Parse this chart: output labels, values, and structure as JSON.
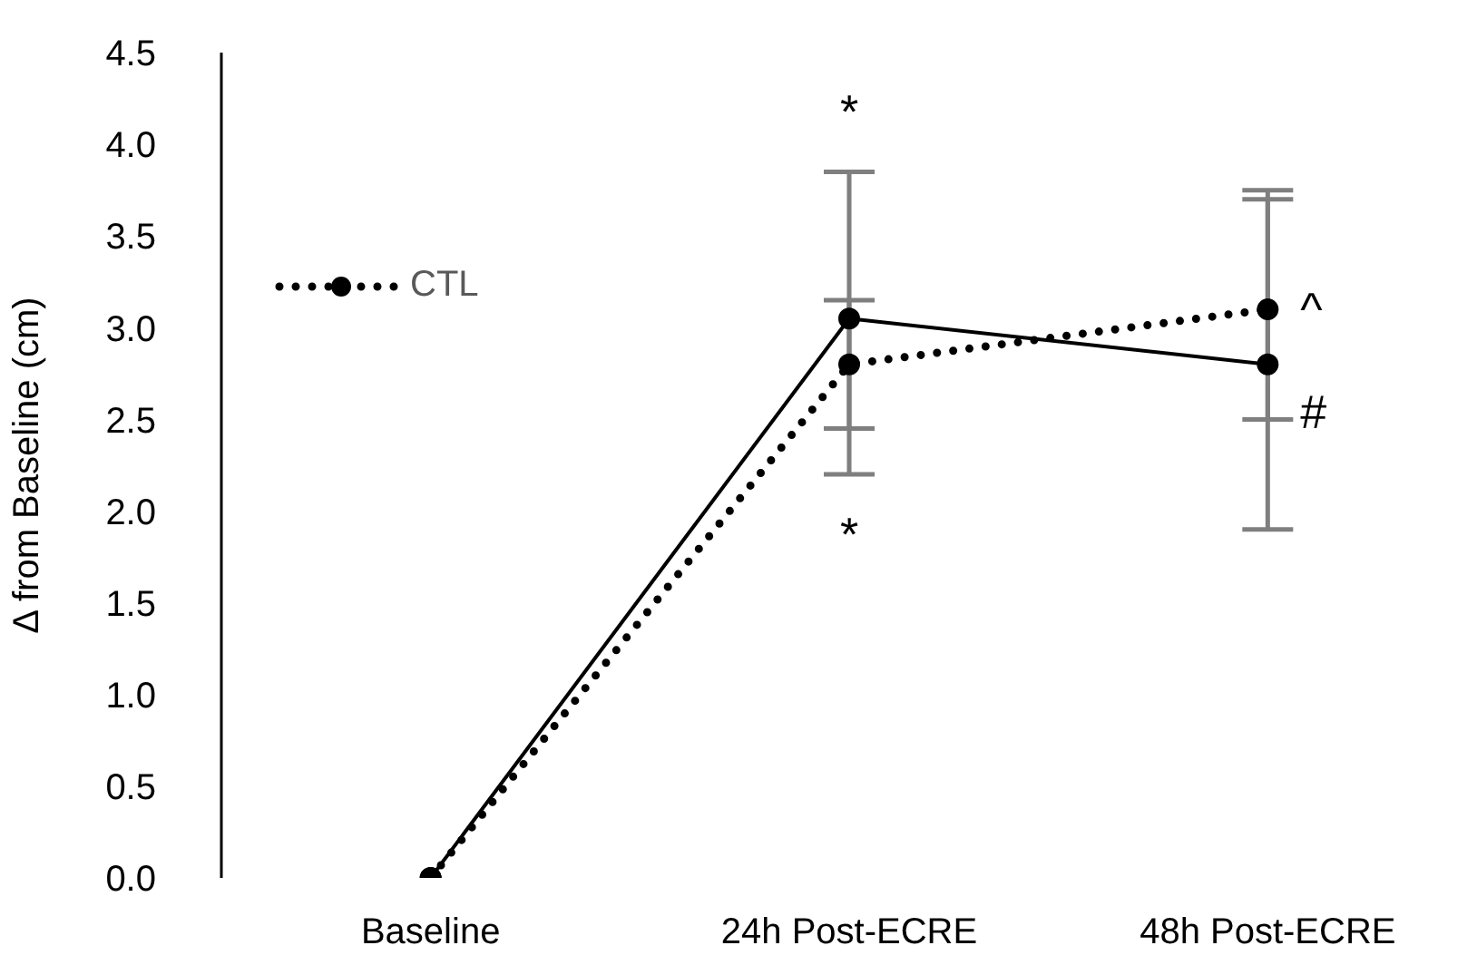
{
  "chart_data": {
    "type": "line",
    "ylabel": "Δ from Baseline (cm)",
    "categories": [
      "Baseline",
      "24h Post-ECRE",
      "48h Post-ECRE"
    ],
    "series": [
      {
        "color": "#000000",
        "values": [
          0,
          3.05,
          2.8
        ],
        "errors": [
          null,
          [
            2.2,
            3.85
          ],
          [
            1.9,
            3.7
          ]
        ],
        "line_style": "solid"
      },
      {
        "name": "CTL",
        "color": "#000000",
        "values": [
          0,
          2.8,
          3.1
        ],
        "errors": [
          null,
          [
            2.45,
            3.15
          ],
          [
            2.5,
            3.75
          ]
        ],
        "line_style": "dotted"
      }
    ],
    "ylim": [
      0,
      4.5
    ],
    "yticks": [
      {
        "value": 0,
        "label": "0.0"
      },
      0.5,
      {
        "value": 1,
        "label": "1.0"
      },
      1.5,
      {
        "value": 2,
        "label": "2.0"
      },
      2.5,
      {
        "value": 3,
        "label": "3.0"
      },
      3.5,
      {
        "value": 4,
        "label": "4.0"
      },
      4.5
    ],
    "annotations": [
      {
        "text": "*",
        "x": "24h Post-ECRE",
        "y": 3.85
      },
      {
        "text": "*",
        "x": "24h Post-ECRE",
        "y": 2.2
      },
      {
        "text": "^",
        "x": "48h Post-ECRE",
        "y": 3.1
      },
      {
        "text": "#",
        "x": "48h Post-ECRE",
        "y": 2.8
      }
    ],
    "marker": "circle",
    "grid": false,
    "legend": "top left"
  }
}
